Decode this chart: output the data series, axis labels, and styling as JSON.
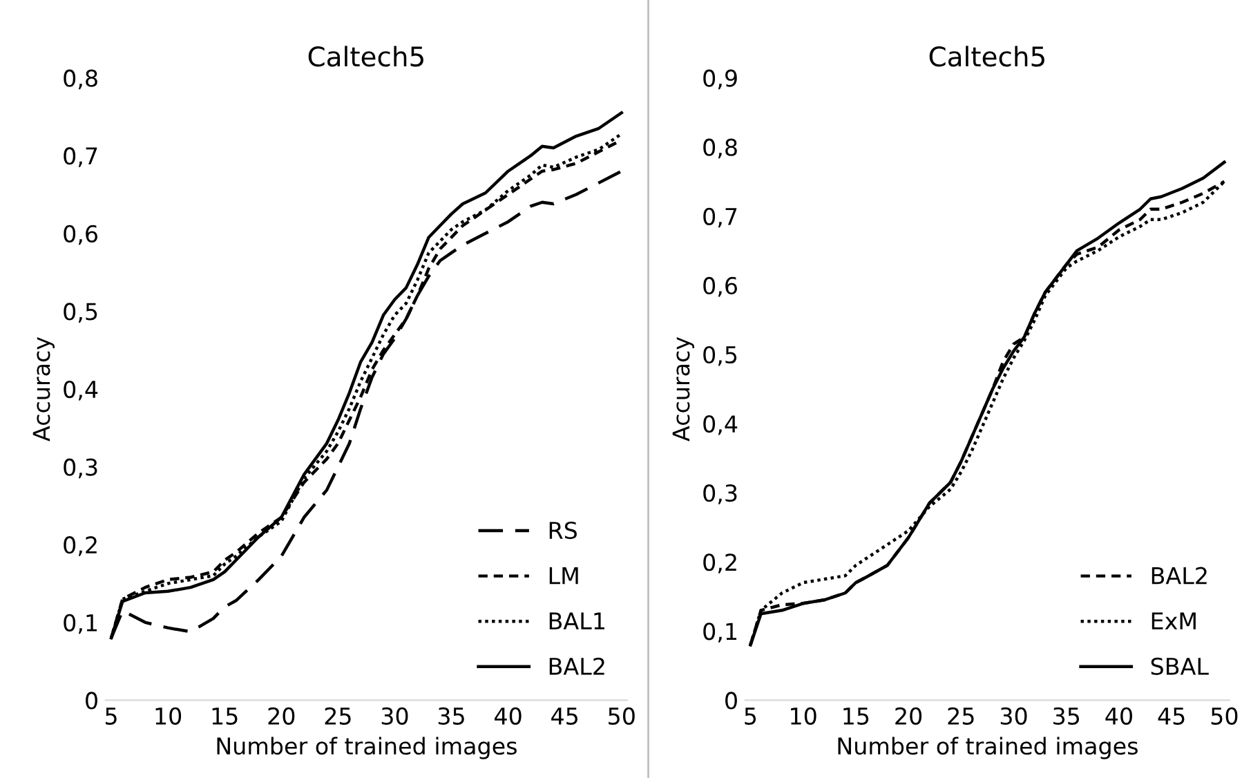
{
  "chart_data": [
    {
      "type": "line",
      "title": "Caltech5",
      "xlabel": "Number of trained images",
      "ylabel": "Accuracy",
      "xlim": [
        4.5,
        50.5
      ],
      "xticks": [
        5,
        10,
        15,
        20,
        25,
        30,
        35,
        40,
        45,
        50
      ],
      "ylim": [
        0,
        0.8
      ],
      "yticks": [
        {
          "value": 0,
          "label": "0"
        },
        {
          "value": 0.1,
          "label": "0,1"
        },
        {
          "value": 0.2,
          "label": "0,2"
        },
        {
          "value": 0.3,
          "label": "0,3"
        },
        {
          "value": 0.4,
          "label": "0,4"
        },
        {
          "value": 0.5,
          "label": "0,5"
        },
        {
          "value": 0.6,
          "label": "0,6"
        },
        {
          "value": 0.7,
          "label": "0,7"
        },
        {
          "value": 0.8,
          "label": "0,8"
        }
      ],
      "grid": false,
      "legend": "bottom right",
      "x": [
        5,
        6,
        8,
        10,
        12,
        14,
        15,
        16,
        18,
        20,
        22,
        24,
        25,
        26,
        27,
        28,
        29,
        30,
        31,
        32,
        33,
        34,
        35,
        36,
        38,
        40,
        42,
        43,
        44,
        46,
        48,
        50
      ],
      "series": [
        {
          "name": "RS",
          "color": "#000000",
          "line_style": "longdash",
          "values": [
            0.08,
            0.115,
            0.1,
            0.093,
            0.088,
            0.105,
            0.12,
            0.128,
            0.155,
            0.185,
            0.235,
            0.27,
            0.3,
            0.33,
            0.375,
            0.415,
            0.445,
            0.465,
            0.49,
            0.52,
            0.545,
            0.565,
            0.575,
            0.585,
            0.6,
            0.615,
            0.635,
            0.64,
            0.638,
            0.65,
            0.665,
            0.68
          ]
        },
        {
          "name": "LM",
          "color": "#000000",
          "line_style": "dashed",
          "values": [
            0.08,
            0.13,
            0.145,
            0.155,
            0.158,
            0.165,
            0.18,
            0.19,
            0.215,
            0.235,
            0.28,
            0.31,
            0.33,
            0.36,
            0.39,
            0.425,
            0.45,
            0.47,
            0.49,
            0.52,
            0.555,
            0.58,
            0.595,
            0.61,
            0.63,
            0.65,
            0.67,
            0.68,
            0.682,
            0.69,
            0.705,
            0.72
          ]
        },
        {
          "name": "BAL1",
          "color": "#000000",
          "line_style": "dotted",
          "values": [
            0.08,
            0.13,
            0.14,
            0.15,
            0.155,
            0.16,
            0.175,
            0.185,
            0.21,
            0.23,
            0.285,
            0.32,
            0.345,
            0.375,
            0.41,
            0.44,
            0.47,
            0.495,
            0.51,
            0.54,
            0.575,
            0.59,
            0.605,
            0.615,
            0.63,
            0.655,
            0.675,
            0.688,
            0.685,
            0.698,
            0.708,
            0.728
          ]
        },
        {
          "name": "BAL2",
          "color": "#000000",
          "line_style": "solid",
          "values": [
            0.08,
            0.127,
            0.138,
            0.14,
            0.145,
            0.155,
            0.165,
            0.18,
            0.21,
            0.235,
            0.29,
            0.33,
            0.36,
            0.395,
            0.435,
            0.46,
            0.495,
            0.515,
            0.53,
            0.56,
            0.595,
            0.61,
            0.625,
            0.638,
            0.652,
            0.68,
            0.7,
            0.712,
            0.71,
            0.725,
            0.735,
            0.755
          ]
        }
      ]
    },
    {
      "type": "line",
      "title": "Caltech5",
      "xlabel": "Number of trained images",
      "ylabel": "Accuracy",
      "xlim": [
        4.5,
        50.5
      ],
      "xticks": [
        5,
        10,
        15,
        20,
        25,
        30,
        35,
        40,
        45,
        50
      ],
      "ylim": [
        0,
        0.9
      ],
      "yticks": [
        {
          "value": 0,
          "label": "0"
        },
        {
          "value": 0.1,
          "label": "0,1"
        },
        {
          "value": 0.2,
          "label": "0,2"
        },
        {
          "value": 0.3,
          "label": "0,3"
        },
        {
          "value": 0.4,
          "label": "0,4"
        },
        {
          "value": 0.5,
          "label": "0,5"
        },
        {
          "value": 0.6,
          "label": "0,6"
        },
        {
          "value": 0.7,
          "label": "0,7"
        },
        {
          "value": 0.8,
          "label": "0,8"
        },
        {
          "value": 0.9,
          "label": "0,9"
        }
      ],
      "grid": false,
      "legend": "bottom right",
      "x": [
        5,
        6,
        8,
        10,
        12,
        14,
        15,
        16,
        18,
        20,
        22,
        24,
        25,
        26,
        27,
        28,
        29,
        30,
        31,
        32,
        33,
        34,
        35,
        36,
        38,
        40,
        42,
        43,
        44,
        46,
        48,
        50
      ],
      "series": [
        {
          "name": "BAL2",
          "color": "#000000",
          "line_style": "dashed",
          "values": [
            0.08,
            0.13,
            0.138,
            0.14,
            0.145,
            0.155,
            0.17,
            0.178,
            0.195,
            0.235,
            0.285,
            0.315,
            0.345,
            0.38,
            0.415,
            0.45,
            0.49,
            0.515,
            0.525,
            0.56,
            0.59,
            0.61,
            0.63,
            0.645,
            0.655,
            0.68,
            0.695,
            0.71,
            0.71,
            0.72,
            0.733,
            0.75
          ]
        },
        {
          "name": "ExM",
          "color": "#000000",
          "line_style": "dotted",
          "values": [
            0.08,
            0.13,
            0.155,
            0.17,
            0.175,
            0.18,
            0.195,
            0.205,
            0.225,
            0.245,
            0.28,
            0.305,
            0.33,
            0.36,
            0.395,
            0.43,
            0.465,
            0.495,
            0.52,
            0.55,
            0.585,
            0.605,
            0.625,
            0.635,
            0.65,
            0.67,
            0.685,
            0.695,
            0.695,
            0.705,
            0.72,
            0.75
          ]
        },
        {
          "name": "SBAL",
          "color": "#000000",
          "line_style": "solid",
          "values": [
            0.08,
            0.125,
            0.13,
            0.14,
            0.145,
            0.155,
            0.17,
            0.178,
            0.195,
            0.235,
            0.285,
            0.315,
            0.345,
            0.38,
            0.415,
            0.45,
            0.48,
            0.505,
            0.525,
            0.56,
            0.59,
            0.61,
            0.63,
            0.65,
            0.668,
            0.69,
            0.71,
            0.725,
            0.728,
            0.74,
            0.755,
            0.778
          ]
        }
      ]
    }
  ]
}
